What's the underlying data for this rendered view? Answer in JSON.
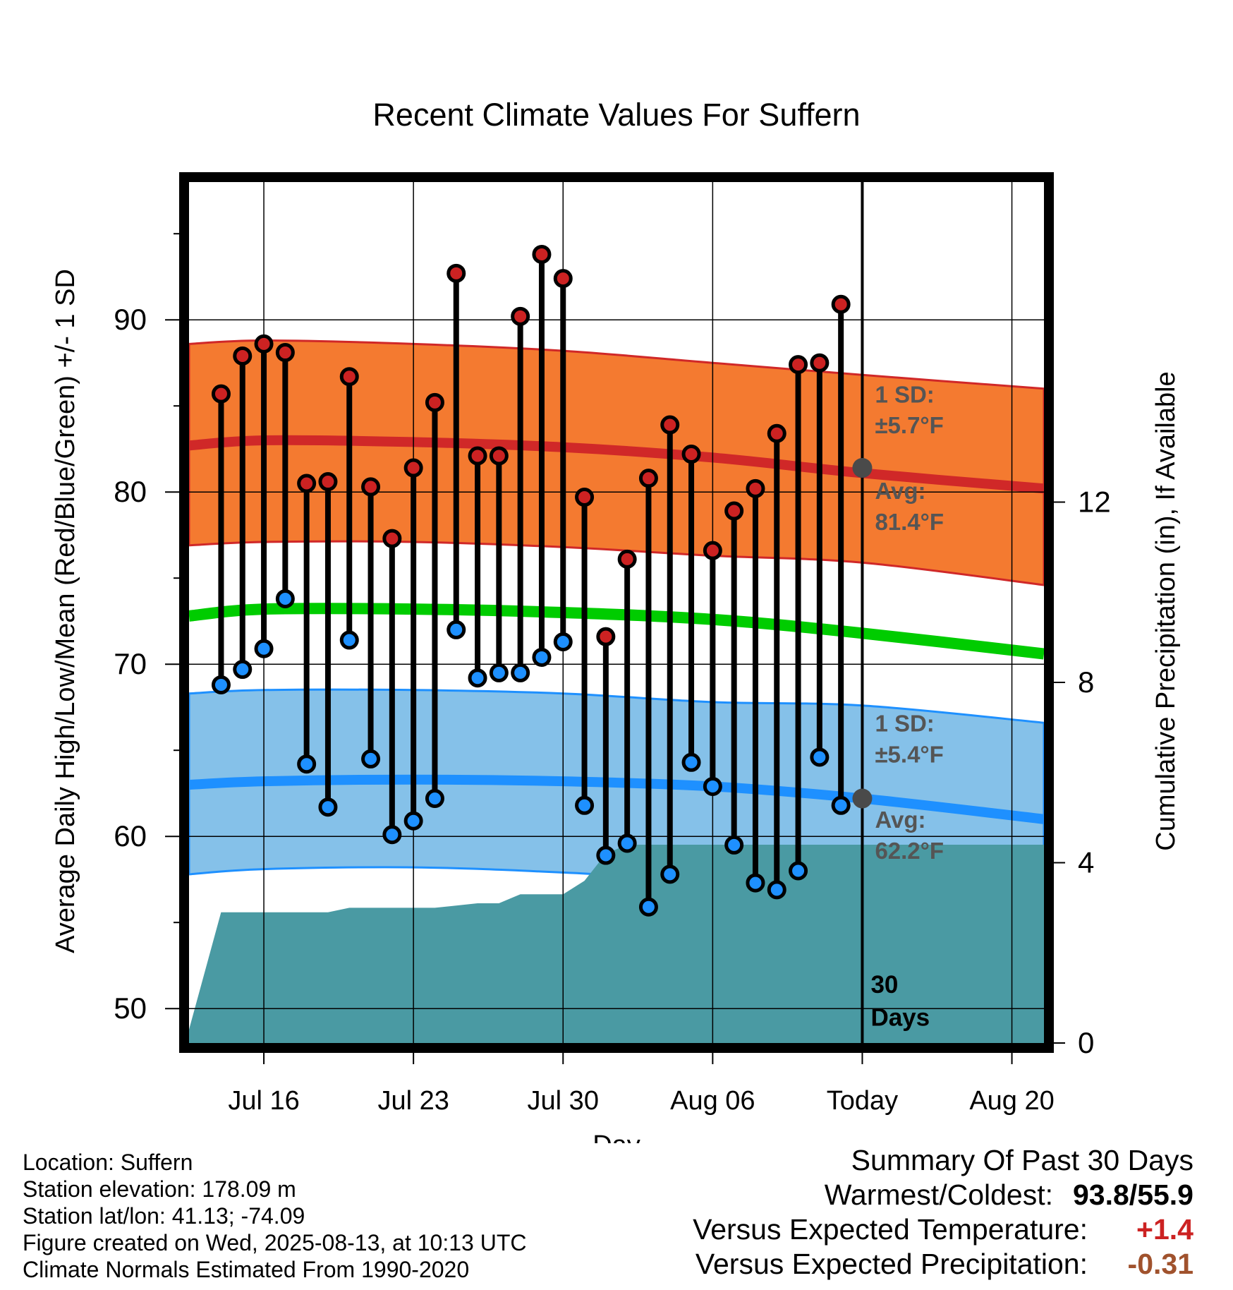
{
  "chart_data": {
    "type": "line",
    "title": "Recent Climate Values For Suffern",
    "xlabel": "Day",
    "ylabel": "Average Daily High/Low/Mean (Red/Blue/Green) +/- 1 SD",
    "y2label": "Cumulative Precipitation (in), If Available",
    "xlim": [
      -3.5,
      36.5
    ],
    "ylim": [
      48,
      98
    ],
    "y2lim": [
      0,
      19.1
    ],
    "grid": true,
    "x_ticks": [
      {
        "day": 0,
        "label": "Jul 16"
      },
      {
        "day": 7,
        "label": "Jul 23"
      },
      {
        "day": 14,
        "label": "Jul 30"
      },
      {
        "day": 21,
        "label": "Aug 06"
      },
      {
        "day": 28,
        "label": "Today"
      },
      {
        "day": 35,
        "label": "Aug 20"
      }
    ],
    "y_ticks": [
      50,
      60,
      70,
      80,
      90
    ],
    "y2_ticks": [
      0,
      4,
      8,
      12
    ],
    "today_day": 28,
    "today_label": "30 Days",
    "daily_days": [
      -2,
      -1,
      0,
      1,
      2,
      3,
      4,
      5,
      6,
      7,
      8,
      9,
      10,
      11,
      12,
      13,
      14,
      15,
      16,
      17,
      18,
      19,
      20,
      21,
      22,
      23,
      24,
      25,
      26,
      27
    ],
    "series": [
      {
        "name": "High",
        "color": "#cc2222",
        "values": [
          85.7,
          87.9,
          88.6,
          88.1,
          80.5,
          80.6,
          86.7,
          80.3,
          77.3,
          81.4,
          85.2,
          92.7,
          82.1,
          82.1,
          90.2,
          93.8,
          92.4,
          79.7,
          71.6,
          76.1,
          80.8,
          83.9,
          82.2,
          76.6,
          78.9,
          80.2,
          83.4,
          87.4,
          87.5,
          90.9
        ]
      },
      {
        "name": "Low",
        "color": "#1e90ff",
        "values": [
          68.8,
          69.7,
          70.9,
          73.8,
          64.2,
          61.7,
          71.4,
          64.5,
          60.1,
          60.9,
          62.2,
          72.0,
          69.2,
          69.5,
          69.5,
          70.4,
          71.3,
          61.8,
          58.9,
          59.6,
          55.9,
          57.8,
          64.3,
          62.9,
          59.5,
          57.3,
          56.9,
          58.0,
          64.6,
          61.8
        ]
      }
    ],
    "normals": {
      "days": [
        -3.5,
        0,
        7,
        14,
        21,
        28,
        36.5
      ],
      "high_mean": [
        82.7,
        83.0,
        82.9,
        82.6,
        82.0,
        81.1,
        80.2
      ],
      "high_upper": [
        88.6,
        88.8,
        88.6,
        88.2,
        87.5,
        86.8,
        86.0
      ],
      "high_lower": [
        76.9,
        77.1,
        77.1,
        76.8,
        76.3,
        75.9,
        74.6
      ],
      "mean": [
        72.8,
        73.2,
        73.2,
        73.0,
        72.6,
        71.8,
        70.6
      ],
      "low_mean": [
        63.0,
        63.2,
        63.3,
        63.2,
        62.9,
        62.2,
        61.0
      ],
      "low_upper": [
        68.3,
        68.5,
        68.5,
        68.3,
        67.8,
        67.6,
        66.6
      ],
      "low_lower": [
        57.8,
        58.1,
        58.2,
        57.9,
        57.4,
        56.8,
        56.0
      ]
    },
    "precip": {
      "days": [
        -3.5,
        -2,
        0,
        3,
        4,
        7,
        8,
        10,
        11,
        12,
        13,
        14,
        15,
        16,
        17,
        18,
        21,
        28,
        36.5
      ],
      "values": [
        0.3,
        2.9,
        2.9,
        2.9,
        3.0,
        3.0,
        3.0,
        3.1,
        3.1,
        3.3,
        3.3,
        3.3,
        3.6,
        4.2,
        4.4,
        4.4,
        4.4,
        4.4,
        4.4
      ]
    },
    "annotations": {
      "high_sd": "1 SD:",
      "high_sd_val": "±5.7°F",
      "high_avg": "Avg:",
      "high_avg_val": "81.4°F",
      "high_avg_point": 81.4,
      "low_sd": "1 SD:",
      "low_sd_val": "±5.4°F",
      "low_avg": "Avg:",
      "low_avg_val": "62.2°F",
      "low_avg_point": 62.2
    },
    "colors": {
      "high_band": "#f47a30",
      "high_line": "#d02828",
      "low_band": "#85c1e9",
      "low_line": "#1e90ff",
      "mean_line": "#00cc00",
      "precip": "#4a9aa3",
      "avg_marker": "#4a4a4a",
      "annotation_text": "#555555"
    }
  },
  "info": {
    "location": "Location: Suffern",
    "elevation": "Station elevation: 178.09 m",
    "latlon": "Station lat/lon: 41.13; -74.09",
    "created": "Figure created on Wed, 2025-08-13, at 10:13 UTC",
    "normals": "Climate Normals Estimated From 1990-2020"
  },
  "summary": {
    "title": "Summary Of Past 30 Days",
    "warmest_label": "Warmest/Coldest:",
    "warmest_value": "93.8/55.9",
    "temp_label": "Versus Expected Temperature:",
    "temp_value": "+1.4",
    "temp_color": "#cc2222",
    "precip_label": "Versus Expected Precipitation:",
    "precip_value": "-0.31",
    "precip_color": "#a0522d"
  }
}
